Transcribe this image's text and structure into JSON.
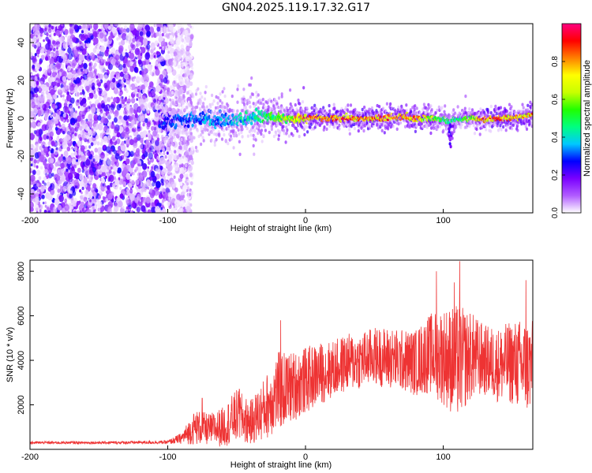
{
  "title": "GN04.2025.119.17.32.G17",
  "chart_data": [
    {
      "type": "heatmap",
      "title": "GN04.2025.119.17.32.G17",
      "xlabel": "Height of straight line (km)",
      "ylabel": "Frequency (Hz)",
      "xlim": [
        -200,
        165
      ],
      "ylim": [
        -50,
        50
      ],
      "x_ticks": [
        -200,
        -100,
        0,
        100
      ],
      "y_ticks": [
        -40,
        -20,
        0,
        20,
        40
      ],
      "colorbar": {
        "label": "Normalized spectral amplitude",
        "range": [
          0,
          1
        ],
        "ticks": [
          "0.0",
          "0.2",
          "0.4",
          "0.6",
          "0.8"
        ],
        "colors": [
          "#ffffff",
          "#b15cff",
          "#7a00ff",
          "#0000ff",
          "#00c8ff",
          "#00ff80",
          "#20ff00",
          "#c8ff00",
          "#ffff00",
          "#ff8000",
          "#ff0000",
          "#ff0080"
        ]
      },
      "noise_region_x": [
        -200,
        -90
      ],
      "signal_center_freq": [
        [
          -105,
          -2
        ],
        [
          -90,
          -1
        ],
        [
          -75,
          0
        ],
        [
          -60,
          -1
        ],
        [
          -45,
          0
        ],
        [
          -30,
          1
        ],
        [
          -15,
          0
        ],
        [
          0,
          0
        ],
        [
          20,
          0
        ],
        [
          40,
          0
        ],
        [
          60,
          0
        ],
        [
          70,
          1
        ],
        [
          80,
          0
        ],
        [
          90,
          0
        ],
        [
          100,
          -1
        ],
        [
          105,
          -2
        ],
        [
          110,
          -1
        ],
        [
          120,
          0
        ],
        [
          130,
          -1
        ],
        [
          140,
          0
        ],
        [
          150,
          0
        ],
        [
          165,
          2
        ]
      ],
      "peak_amplitude": [
        [
          -105,
          0.3
        ],
        [
          -90,
          0.35
        ],
        [
          -70,
          0.4
        ],
        [
          -50,
          0.45
        ],
        [
          -30,
          0.55
        ],
        [
          -15,
          0.7
        ],
        [
          0,
          0.95
        ],
        [
          40,
          0.95
        ],
        [
          80,
          0.9
        ],
        [
          100,
          0.6
        ],
        [
          110,
          0.55
        ],
        [
          130,
          0.95
        ],
        [
          165,
          0.9
        ]
      ]
    },
    {
      "type": "line",
      "xlabel": "Height of straight line (km)",
      "ylabel": "SNR (10 * v/v)",
      "xlim": [
        -200,
        165
      ],
      "ylim": [
        0,
        8500
      ],
      "x_ticks": [
        -200,
        -100,
        0,
        100
      ],
      "y_ticks": [
        2000,
        4000,
        6000,
        8000
      ],
      "line_color": "#ee3333",
      "envelope": [
        {
          "x": -200,
          "mean": 300,
          "spread": 60
        },
        {
          "x": -150,
          "mean": 300,
          "spread": 60
        },
        {
          "x": -100,
          "mean": 320,
          "spread": 80
        },
        {
          "x": -90,
          "mean": 500,
          "spread": 250
        },
        {
          "x": -80,
          "mean": 1000,
          "spread": 800
        },
        {
          "x": -70,
          "mean": 900,
          "spread": 700
        },
        {
          "x": -60,
          "mean": 1000,
          "spread": 900
        },
        {
          "x": -50,
          "mean": 1500,
          "spread": 1200
        },
        {
          "x": -40,
          "mean": 1200,
          "spread": 1000
        },
        {
          "x": -30,
          "mean": 1800,
          "spread": 1400
        },
        {
          "x": -20,
          "mean": 2600,
          "spread": 1800
        },
        {
          "x": -10,
          "mean": 2800,
          "spread": 1600
        },
        {
          "x": 0,
          "mean": 3100,
          "spread": 1500
        },
        {
          "x": 10,
          "mean": 3400,
          "spread": 1400
        },
        {
          "x": 20,
          "mean": 3600,
          "spread": 1300
        },
        {
          "x": 30,
          "mean": 3900,
          "spread": 1300
        },
        {
          "x": 40,
          "mean": 4000,
          "spread": 1300
        },
        {
          "x": 50,
          "mean": 4200,
          "spread": 1300
        },
        {
          "x": 60,
          "mean": 4100,
          "spread": 1400
        },
        {
          "x": 70,
          "mean": 4000,
          "spread": 1400
        },
        {
          "x": 80,
          "mean": 3900,
          "spread": 1500
        },
        {
          "x": 90,
          "mean": 4300,
          "spread": 1800
        },
        {
          "x": 100,
          "mean": 4200,
          "spread": 2200
        },
        {
          "x": 110,
          "mean": 3900,
          "spread": 2600
        },
        {
          "x": 120,
          "mean": 4200,
          "spread": 2000
        },
        {
          "x": 130,
          "mean": 4000,
          "spread": 1600
        },
        {
          "x": 140,
          "mean": 3800,
          "spread": 1700
        },
        {
          "x": 150,
          "mean": 3900,
          "spread": 1900
        },
        {
          "x": 160,
          "mean": 3700,
          "spread": 2200
        },
        {
          "x": 165,
          "mean": 3800,
          "spread": 2000
        }
      ],
      "peaks": [
        {
          "x": 95,
          "y": 8000
        },
        {
          "x": 108,
          "y": 7500
        },
        {
          "x": 112,
          "y": 8450
        },
        {
          "x": 160,
          "y": 7600
        },
        {
          "x": -18,
          "y": 5800
        },
        {
          "x": -48,
          "y": 2700
        },
        {
          "x": -75,
          "y": 2300
        }
      ]
    }
  ]
}
